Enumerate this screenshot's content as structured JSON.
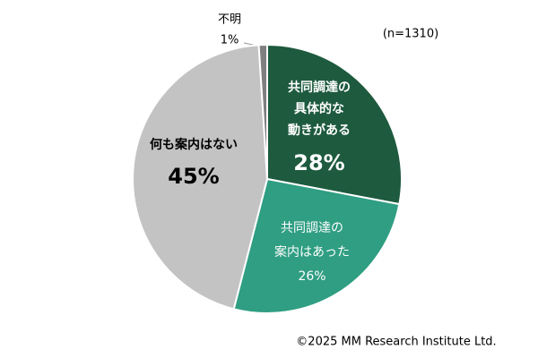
{
  "chart_data": {
    "type": "pie",
    "categories": [
      [
        "共同調達の",
        "具体的な",
        "動きがある"
      ],
      [
        "共同調達の",
        "案内はあった"
      ],
      [
        "何も案内はない"
      ],
      [
        "不明"
      ]
    ],
    "values": [
      28,
      26,
      45,
      1
    ],
    "value_labels": [
      "28%",
      "26%",
      "45%",
      "1%"
    ],
    "colors": [
      "#1d5a3e",
      "#2f9e82",
      "#c3c3c3",
      "#7f7f7f"
    ],
    "note": "(n=1310)",
    "copyright": "©2025 MM Research Institute Ltd."
  }
}
